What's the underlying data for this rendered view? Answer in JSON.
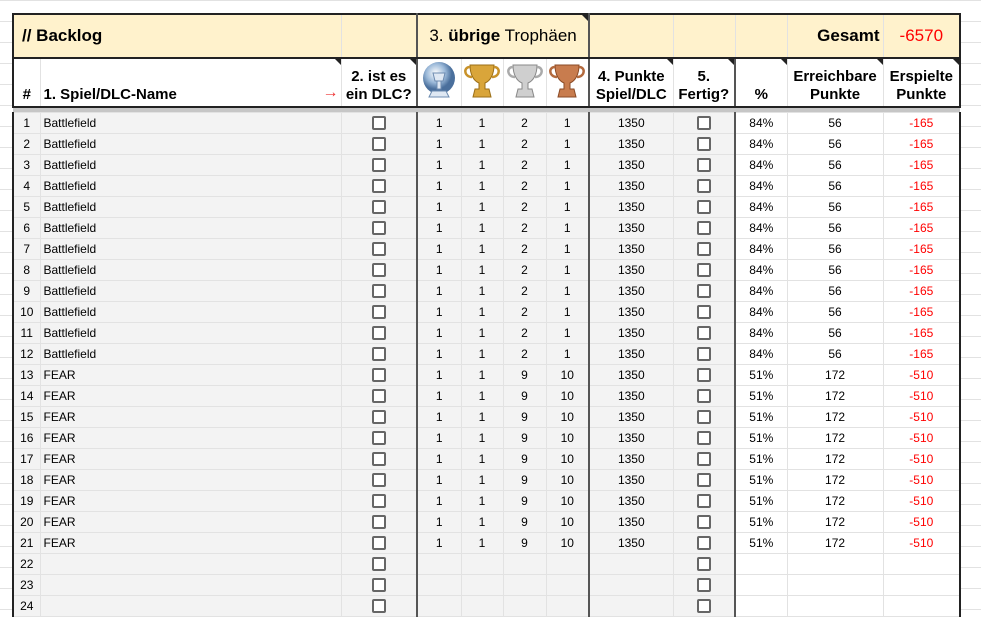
{
  "title": {
    "backlog": "// Backlog",
    "trophies_prefix": "3. ",
    "trophies_bold": "übrige",
    "trophies_suffix": " Trophäen",
    "total_label": "Gesamt",
    "total_value": "-6570"
  },
  "headers": {
    "num": "#",
    "name": "1. Spiel/DLC-Name",
    "arrow": "→",
    "dlc": "2. ist es ein DLC?",
    "platinum_icon": "platinum-trophy-icon",
    "gold_icon": "gold-trophy-icon",
    "silver_icon": "silver-trophy-icon",
    "bronze_icon": "bronze-trophy-icon",
    "points": "4. Punkte Spiel/DLC",
    "done": "5. Fertig?",
    "percent": "%",
    "reachable": "Erreichbare Punkte",
    "earned": "Erspielte Punkte"
  },
  "colors": {
    "header_bg": "#fff2cc",
    "negative": "#ff0000"
  },
  "rows": [
    {
      "n": "1",
      "name": "Battlefield",
      "dlc": false,
      "p": "1",
      "g": "1",
      "s": "2",
      "b": "1",
      "pts": "1350",
      "done": false,
      "pct": "84%",
      "reach": "56",
      "earned": "-165"
    },
    {
      "n": "2",
      "name": "Battlefield",
      "dlc": false,
      "p": "1",
      "g": "1",
      "s": "2",
      "b": "1",
      "pts": "1350",
      "done": false,
      "pct": "84%",
      "reach": "56",
      "earned": "-165"
    },
    {
      "n": "3",
      "name": "Battlefield",
      "dlc": false,
      "p": "1",
      "g": "1",
      "s": "2",
      "b": "1",
      "pts": "1350",
      "done": false,
      "pct": "84%",
      "reach": "56",
      "earned": "-165"
    },
    {
      "n": "4",
      "name": "Battlefield",
      "dlc": false,
      "p": "1",
      "g": "1",
      "s": "2",
      "b": "1",
      "pts": "1350",
      "done": false,
      "pct": "84%",
      "reach": "56",
      "earned": "-165"
    },
    {
      "n": "5",
      "name": "Battlefield",
      "dlc": false,
      "p": "1",
      "g": "1",
      "s": "2",
      "b": "1",
      "pts": "1350",
      "done": false,
      "pct": "84%",
      "reach": "56",
      "earned": "-165"
    },
    {
      "n": "6",
      "name": "Battlefield",
      "dlc": false,
      "p": "1",
      "g": "1",
      "s": "2",
      "b": "1",
      "pts": "1350",
      "done": false,
      "pct": "84%",
      "reach": "56",
      "earned": "-165"
    },
    {
      "n": "7",
      "name": "Battlefield",
      "dlc": false,
      "p": "1",
      "g": "1",
      "s": "2",
      "b": "1",
      "pts": "1350",
      "done": false,
      "pct": "84%",
      "reach": "56",
      "earned": "-165"
    },
    {
      "n": "8",
      "name": "Battlefield",
      "dlc": false,
      "p": "1",
      "g": "1",
      "s": "2",
      "b": "1",
      "pts": "1350",
      "done": false,
      "pct": "84%",
      "reach": "56",
      "earned": "-165"
    },
    {
      "n": "9",
      "name": "Battlefield",
      "dlc": false,
      "p": "1",
      "g": "1",
      "s": "2",
      "b": "1",
      "pts": "1350",
      "done": false,
      "pct": "84%",
      "reach": "56",
      "earned": "-165"
    },
    {
      "n": "10",
      "name": "Battlefield",
      "dlc": false,
      "p": "1",
      "g": "1",
      "s": "2",
      "b": "1",
      "pts": "1350",
      "done": false,
      "pct": "84%",
      "reach": "56",
      "earned": "-165"
    },
    {
      "n": "11",
      "name": "Battlefield",
      "dlc": false,
      "p": "1",
      "g": "1",
      "s": "2",
      "b": "1",
      "pts": "1350",
      "done": false,
      "pct": "84%",
      "reach": "56",
      "earned": "-165"
    },
    {
      "n": "12",
      "name": "Battlefield",
      "dlc": false,
      "p": "1",
      "g": "1",
      "s": "2",
      "b": "1",
      "pts": "1350",
      "done": false,
      "pct": "84%",
      "reach": "56",
      "earned": "-165"
    },
    {
      "n": "13",
      "name": "FEAR",
      "dlc": false,
      "p": "1",
      "g": "1",
      "s": "9",
      "b": "10",
      "pts": "1350",
      "done": false,
      "pct": "51%",
      "reach": "172",
      "earned": "-510"
    },
    {
      "n": "14",
      "name": "FEAR",
      "dlc": false,
      "p": "1",
      "g": "1",
      "s": "9",
      "b": "10",
      "pts": "1350",
      "done": false,
      "pct": "51%",
      "reach": "172",
      "earned": "-510"
    },
    {
      "n": "15",
      "name": "FEAR",
      "dlc": false,
      "p": "1",
      "g": "1",
      "s": "9",
      "b": "10",
      "pts": "1350",
      "done": false,
      "pct": "51%",
      "reach": "172",
      "earned": "-510"
    },
    {
      "n": "16",
      "name": "FEAR",
      "dlc": false,
      "p": "1",
      "g": "1",
      "s": "9",
      "b": "10",
      "pts": "1350",
      "done": false,
      "pct": "51%",
      "reach": "172",
      "earned": "-510"
    },
    {
      "n": "17",
      "name": "FEAR",
      "dlc": false,
      "p": "1",
      "g": "1",
      "s": "9",
      "b": "10",
      "pts": "1350",
      "done": false,
      "pct": "51%",
      "reach": "172",
      "earned": "-510"
    },
    {
      "n": "18",
      "name": "FEAR",
      "dlc": false,
      "p": "1",
      "g": "1",
      "s": "9",
      "b": "10",
      "pts": "1350",
      "done": false,
      "pct": "51%",
      "reach": "172",
      "earned": "-510"
    },
    {
      "n": "19",
      "name": "FEAR",
      "dlc": false,
      "p": "1",
      "g": "1",
      "s": "9",
      "b": "10",
      "pts": "1350",
      "done": false,
      "pct": "51%",
      "reach": "172",
      "earned": "-510"
    },
    {
      "n": "20",
      "name": "FEAR",
      "dlc": false,
      "p": "1",
      "g": "1",
      "s": "9",
      "b": "10",
      "pts": "1350",
      "done": false,
      "pct": "51%",
      "reach": "172",
      "earned": "-510"
    },
    {
      "n": "21",
      "name": "FEAR",
      "dlc": false,
      "p": "1",
      "g": "1",
      "s": "9",
      "b": "10",
      "pts": "1350",
      "done": false,
      "pct": "51%",
      "reach": "172",
      "earned": "-510"
    },
    {
      "n": "22",
      "name": "",
      "dlc": false,
      "p": "",
      "g": "",
      "s": "",
      "b": "",
      "pts": "",
      "done": false,
      "pct": "",
      "reach": "",
      "earned": ""
    },
    {
      "n": "23",
      "name": "",
      "dlc": false,
      "p": "",
      "g": "",
      "s": "",
      "b": "",
      "pts": "",
      "done": false,
      "pct": "",
      "reach": "",
      "earned": ""
    },
    {
      "n": "24",
      "name": "",
      "dlc": false,
      "p": "",
      "g": "",
      "s": "",
      "b": "",
      "pts": "",
      "done": false,
      "pct": "",
      "reach": "",
      "earned": ""
    }
  ]
}
